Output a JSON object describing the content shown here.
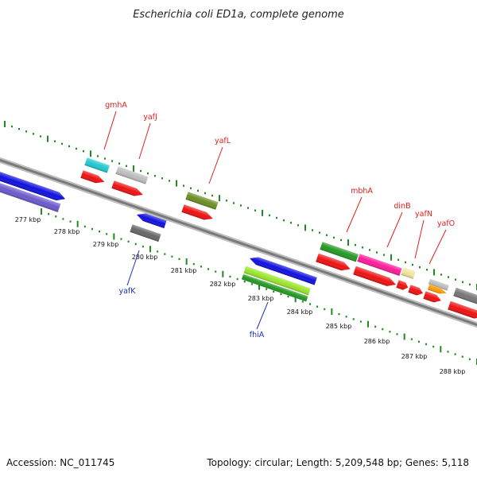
{
  "title": "Escherichia coli ED1a, complete genome",
  "footer": {
    "accession": "Accession: NC_011745",
    "summary": "Topology: circular; Length: 5,209,548 bp; Genes: 5,118"
  },
  "colors": {
    "forward_label": "#e0201c",
    "reverse_label": "#1a2fc0",
    "tick": "#1e8c1e",
    "backbone": "#8a8a8a"
  },
  "scale_labels": [
    "277 kbp",
    "278 kbp",
    "279 kbp",
    "280 kbp",
    "281 kbp",
    "282 kbp",
    "283 kbp",
    "284 kbp",
    "285 kbp",
    "286 kbp",
    "287 kbp",
    "288 kbp"
  ],
  "gene_labels": {
    "forward": [
      "gmhA",
      "yafJ",
      "yafL",
      "mbhA",
      "dinB",
      "yafN",
      "yafO"
    ],
    "reverse": [
      "yafK",
      "fhiA"
    ]
  }
}
